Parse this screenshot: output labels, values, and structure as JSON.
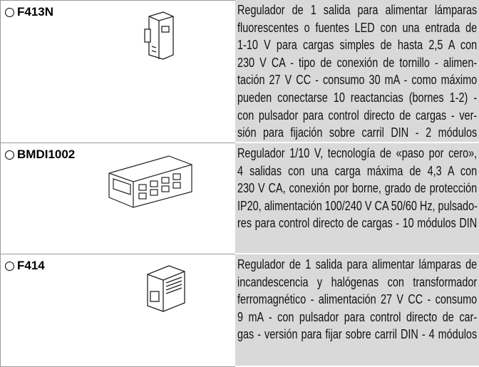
{
  "rows": [
    {
      "code": "F413N",
      "description_lines": [
        "Regulador de 1 salida para alimentar lámparas",
        "fluorescentes o fuentes LED con una entrada de",
        "1-10 V para cargas simples de hasta 2,5 A con",
        "230 V CA - tipo de conexión de tornillo - alimen-",
        "tación 27 V CC - consumo 30 mA - como máximo",
        "pueden conectarse 10 reactancias (bornes 1-2) -",
        "con pulsador para control directo de cargas - ver-",
        "sión para fijación sobre carril DIN - 2 módulos"
      ]
    },
    {
      "code": "BMDI1002",
      "description_lines": [
        "Regulador 1/10 V, tecnología de «paso por cero»,",
        "4 salidas con una carga máxima de 4,3 A con",
        "230 V CA, conexión por borne, grado de protección",
        "IP20, alimentación 100/240 V CA 50/60 Hz, pulsado-",
        "res para control directo de cargas - 10 módulos DIN"
      ]
    },
    {
      "code": "F414",
      "description_lines": [
        "Regulador de 1 salida para alimentar lámparas de",
        "incandescencia y halógenas con transformador",
        "ferromagnético - alimentación 27 V CC - consumo",
        "9 mA - con pulsador para control directo de car-",
        "gas - versión para fijar sobre carril DIN - 4 módulos"
      ]
    }
  ]
}
